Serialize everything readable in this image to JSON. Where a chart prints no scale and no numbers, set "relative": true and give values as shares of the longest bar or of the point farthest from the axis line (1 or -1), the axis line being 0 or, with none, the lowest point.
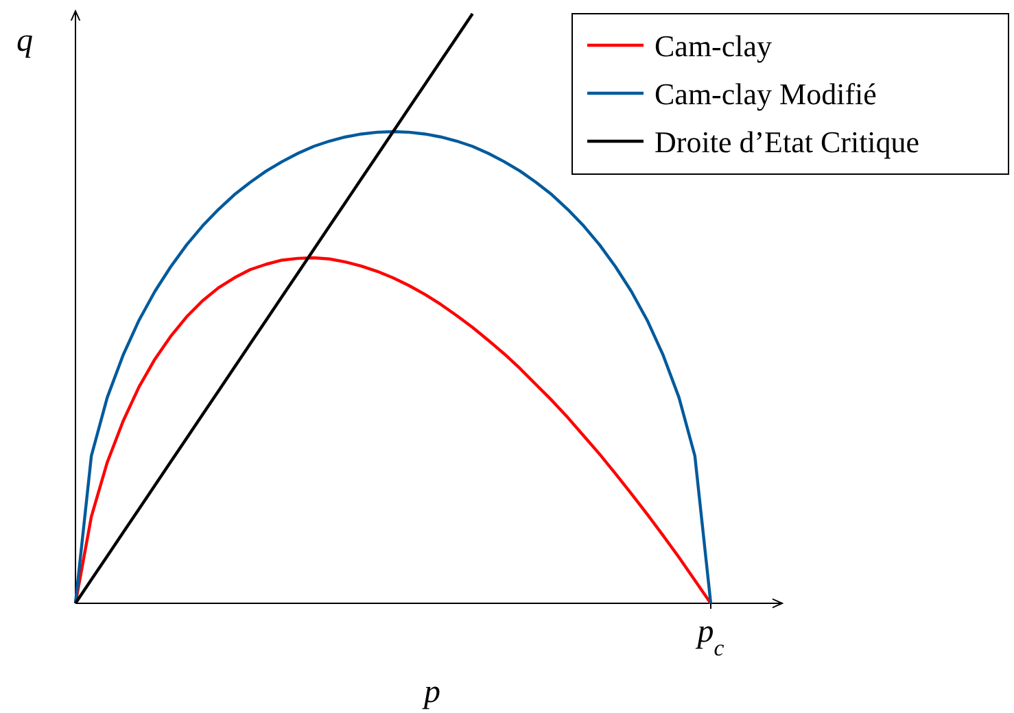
{
  "chart_data": {
    "type": "line",
    "relative": true,
    "xlabel": "p",
    "ylabel": "q",
    "annotations": [
      "p$_{c}$"
    ],
    "legend": "top right",
    "line_style": "solid",
    "categories": [
      null,
      null,
      null,
      null,
      null,
      null,
      null,
      null,
      null,
      null,
      null,
      null,
      null,
      null,
      null,
      null,
      null,
      null,
      null,
      null,
      null,
      null,
      null,
      null,
      null,
      null,
      null,
      null,
      null,
      null,
      null,
      null,
      null,
      null,
      null,
      null,
      null,
      null,
      null,
      null,
      null
    ],
    "series": [
      {
        "name": "Cam-clay",
        "color": "#ff0000",
        "values": [
          0,
          0.147,
          0.239,
          0.309,
          0.367,
          0.414,
          0.453,
          0.486,
          0.513,
          0.535,
          0.552,
          0.566,
          0.575,
          0.582,
          0.585,
          0.586,
          0.584,
          0.579,
          0.572,
          0.563,
          0.552,
          0.539,
          0.524,
          0.507,
          0.488,
          0.468,
          0.446,
          0.423,
          0.398,
          0.371,
          0.344,
          0.315,
          0.284,
          0.253,
          0.22,
          0.186,
          0.151,
          0.115,
          0.078,
          0.039,
          0
        ]
      },
      {
        "name": "Cam-clay Modifié",
        "color": "#005a9c",
        "values": [
          0,
          0.25,
          0.349,
          0.421,
          0.48,
          0.529,
          0.571,
          0.608,
          0.64,
          0.668,
          0.693,
          0.714,
          0.733,
          0.749,
          0.763,
          0.775,
          0.784,
          0.791,
          0.796,
          0.799,
          0.8,
          0.799,
          0.796,
          0.791,
          0.784,
          0.775,
          0.763,
          0.749,
          0.733,
          0.714,
          0.693,
          0.668,
          0.64,
          0.608,
          0.571,
          0.529,
          0.48,
          0.421,
          0.349,
          0.25,
          0
        ]
      },
      {
        "name": "Droite d’Etat Critique",
        "color": "#000000",
        "values": [
          0,
          0.04,
          0.08,
          0.12,
          0.16,
          0.2,
          0.24,
          0.28,
          0.32,
          0.36,
          0.4,
          0.44,
          0.48,
          0.52,
          0.56,
          0.6,
          0.64,
          0.68,
          0.72,
          0.76,
          0.8,
          0.84,
          0.88,
          0.92,
          0.96,
          1,
          null,
          null,
          null,
          null,
          null,
          null,
          null,
          null,
          null,
          null,
          null,
          null,
          null,
          null,
          null
        ]
      }
    ]
  }
}
